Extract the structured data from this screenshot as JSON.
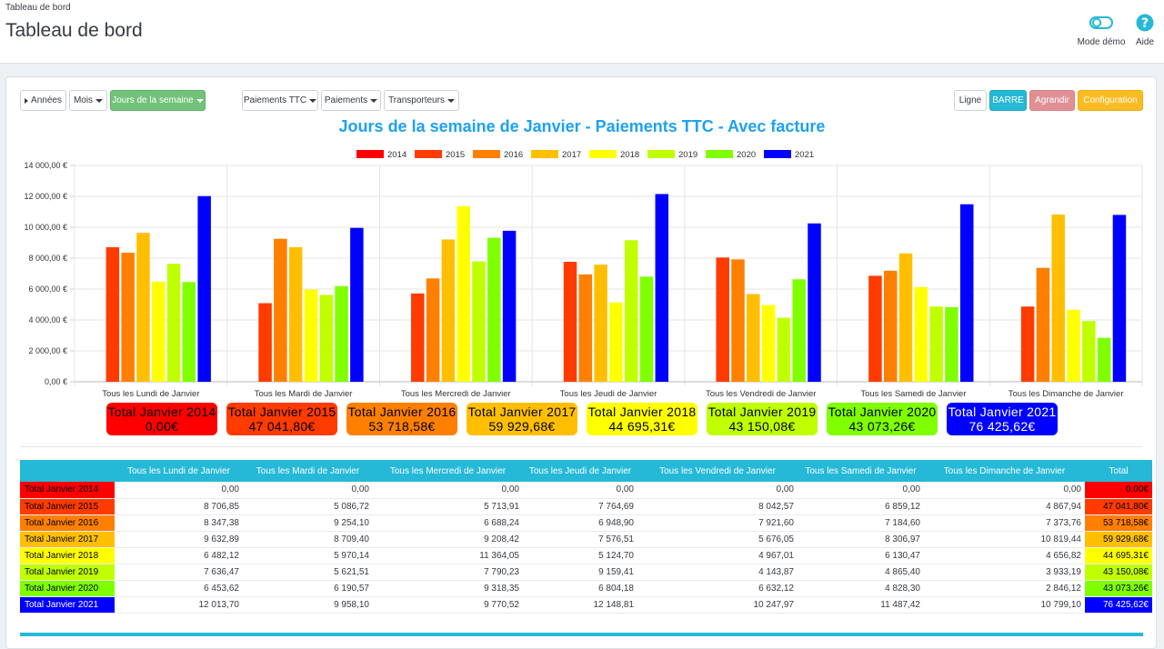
{
  "breadcrumb": "Tableau de bord",
  "title": "Tableau de bord",
  "header_actions": {
    "demo": "Mode démo",
    "help": "Aide"
  },
  "filters": {
    "annees": "Années",
    "mois": "Mois",
    "jours": "Jours de la semaine",
    "paiements_ttc": "Paiements TTC",
    "paiements": "Paiements",
    "transporteurs": "Transporteurs"
  },
  "view_buttons": {
    "ligne": "Ligne",
    "barre": "BARRE",
    "agrandir": "Agrandir",
    "configuration": "Configuration"
  },
  "colors": {
    "2014": "#ff0000",
    "2015": "#ff3b00",
    "2016": "#ff7f00",
    "2017": "#ffbf00",
    "2018": "#ffff00",
    "2019": "#bfff00",
    "2020": "#7fff00",
    "2021": "#0000ff"
  },
  "chart_data": {
    "type": "bar",
    "title": "Jours de la semaine de Janvier - Paiements TTC - Avec facture",
    "categories": [
      "Tous les Lundi de Janvier",
      "Tous les Mardi de Janvier",
      "Tous les Mercredi de Janvier",
      "Tous les Jeudi de Janvier",
      "Tous les Vendredi de Janvier",
      "Tous les Samedi de Janvier",
      "Tous les Dimanche de Janvier"
    ],
    "ylim": [
      0,
      14000
    ],
    "yticks": [
      "0,00 €",
      "2 000,00 €",
      "4 000,00 €",
      "6 000,00 €",
      "8 000,00 €",
      "10 000,00 €",
      "12 000,00 €",
      "14 000,00 €"
    ],
    "legend_position": "top",
    "series": [
      {
        "name": "2014",
        "values": [
          0,
          0,
          0,
          0,
          0,
          0,
          0
        ]
      },
      {
        "name": "2015",
        "values": [
          8706.85,
          5086.72,
          5713.91,
          7764.69,
          8042.57,
          6859.12,
          4867.94
        ]
      },
      {
        "name": "2016",
        "values": [
          8347.38,
          9254.1,
          6688.24,
          6948.9,
          7921.6,
          7184.6,
          7373.76
        ]
      },
      {
        "name": "2017",
        "values": [
          9632.89,
          8709.4,
          9208.42,
          7576.51,
          5676.05,
          8306.97,
          10819.44
        ]
      },
      {
        "name": "2018",
        "values": [
          6482.12,
          5970.14,
          11364.05,
          5124.7,
          4967.01,
          6130.47,
          4656.82
        ]
      },
      {
        "name": "2019",
        "values": [
          7636.47,
          5621.51,
          7790.23,
          9159.41,
          4143.87,
          4865.4,
          3933.19
        ]
      },
      {
        "name": "2020",
        "values": [
          6453.62,
          6190.57,
          9318.35,
          6804.18,
          6632.12,
          4828.3,
          2846.12
        ]
      },
      {
        "name": "2021",
        "values": [
          12013.7,
          9958.1,
          9770.52,
          12148.81,
          10247.97,
          11487.42,
          10799.1
        ]
      }
    ]
  },
  "totals": [
    {
      "label": "Total Janvier 2014",
      "value": "0,00€",
      "color": "#ff0000",
      "text_color": "#000000"
    },
    {
      "label": "Total Janvier 2015",
      "value": "47 041,80€",
      "color": "#ff3b00",
      "text_color": "#000000"
    },
    {
      "label": "Total Janvier 2016",
      "value": "53 718,58€",
      "color": "#ff7f00",
      "text_color": "#000000"
    },
    {
      "label": "Total Janvier 2017",
      "value": "59 929,68€",
      "color": "#ffbf00",
      "text_color": "#000000"
    },
    {
      "label": "Total Janvier 2018",
      "value": "44 695,31€",
      "color": "#ffff00",
      "text_color": "#000000"
    },
    {
      "label": "Total Janvier 2019",
      "value": "43 150,08€",
      "color": "#bfff00",
      "text_color": "#000000"
    },
    {
      "label": "Total Janvier 2020",
      "value": "43 073,26€",
      "color": "#7fff00",
      "text_color": "#000000"
    },
    {
      "label": "Total Janvier 2021",
      "value": "76 425,62€",
      "color": "#0000ff",
      "text_color": "#ffffff"
    }
  ],
  "table": {
    "headers": [
      "",
      "Tous les Lundi de Janvier",
      "Tous les Mardi de Janvier",
      "Tous les Mercredi de Janvier",
      "Tous les Jeudi de Janvier",
      "Tous les Vendredi de Janvier",
      "Tous les Samedi de Janvier",
      "Tous les Dimanche de Janvier",
      "Total"
    ],
    "rows": [
      {
        "label": "Total Janvier 2014",
        "cells": [
          "0,00",
          "0,00",
          "0,00",
          "0,00",
          "0,00",
          "0,00",
          "0,00"
        ],
        "total": "0,00€",
        "color": "#ff0000",
        "text_color": "#000000"
      },
      {
        "label": "Total Janvier 2015",
        "cells": [
          "8 706,85",
          "5 086,72",
          "5 713,91",
          "7 764,69",
          "8 042,57",
          "6 859,12",
          "4 867,94"
        ],
        "total": "47 041,80€",
        "color": "#ff3b00",
        "text_color": "#000000"
      },
      {
        "label": "Total Janvier 2016",
        "cells": [
          "8 347,38",
          "9 254,10",
          "6 688,24",
          "6 948,90",
          "7 921,60",
          "7 184,60",
          "7 373,76"
        ],
        "total": "53 718,58€",
        "color": "#ff7f00",
        "text_color": "#000000"
      },
      {
        "label": "Total Janvier 2017",
        "cells": [
          "9 632,89",
          "8 709,40",
          "9 208,42",
          "7 576,51",
          "5 676,05",
          "8 306,97",
          "10 819,44"
        ],
        "total": "59 929,68€",
        "color": "#ffbf00",
        "text_color": "#000000"
      },
      {
        "label": "Total Janvier 2018",
        "cells": [
          "6 482,12",
          "5 970,14",
          "11 364,05",
          "5 124,70",
          "4 967,01",
          "6 130,47",
          "4 656,82"
        ],
        "total": "44 695,31€",
        "color": "#ffff00",
        "text_color": "#000000"
      },
      {
        "label": "Total Janvier 2019",
        "cells": [
          "7 636,47",
          "5 621,51",
          "7 790,23",
          "9 159,41",
          "4 143,87",
          "4 865,40",
          "3 933,19"
        ],
        "total": "43 150,08€",
        "color": "#bfff00",
        "text_color": "#000000"
      },
      {
        "label": "Total Janvier 2020",
        "cells": [
          "6 453,62",
          "6 190,57",
          "9 318,35",
          "6 804,18",
          "6 632,12",
          "4 828,30",
          "2 846,12"
        ],
        "total": "43 073,26€",
        "color": "#7fff00",
        "text_color": "#000000"
      },
      {
        "label": "Total Janvier 2021",
        "cells": [
          "12 013,70",
          "9 958,10",
          "9 770,52",
          "12 148,81",
          "10 247,97",
          "11 487,42",
          "10 799,10"
        ],
        "total": "76 425,62€",
        "color": "#0000ff",
        "text_color": "#ffffff"
      }
    ]
  }
}
